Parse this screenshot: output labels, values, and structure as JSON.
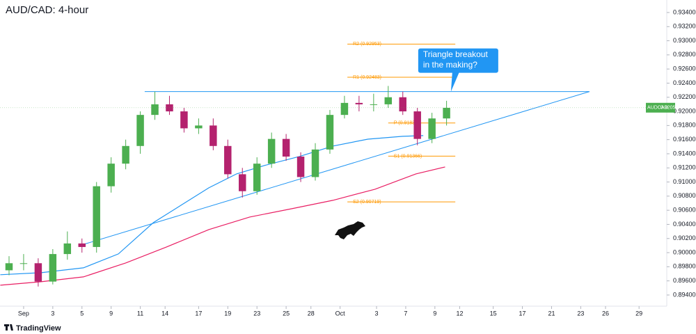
{
  "chart_data": {
    "type": "candlestick",
    "title": "AUD/CAD: 4-hour",
    "x": [
      -1,
      0,
      1,
      2,
      3,
      4,
      5,
      6,
      7,
      8,
      9,
      10,
      11,
      12,
      13,
      14,
      15,
      16,
      17,
      18,
      19,
      20,
      21,
      22,
      23,
      24,
      25,
      26,
      27,
      28,
      29
    ],
    "open": [
      0.8975,
      0.8985,
      0.8985,
      0.8959,
      0.8998,
      0.9013,
      0.9008,
      0.9094,
      0.9126,
      0.9151,
      0.9195,
      0.921,
      0.92,
      0.9176,
      0.918,
      0.9151,
      0.9111,
      0.9087,
      0.9126,
      0.9161,
      0.9136,
      0.9107,
      0.9146,
      0.9195,
      0.9212,
      0.921,
      0.921,
      0.922,
      0.92,
      0.9161,
      0.919
    ],
    "high": [
      0.8995,
      0.8998,
      0.8992,
      0.9005,
      0.903,
      0.902,
      0.91,
      0.9135,
      0.916,
      0.92,
      0.9228,
      0.9222,
      0.9205,
      0.919,
      0.919,
      0.916,
      0.912,
      0.9135,
      0.917,
      0.9168,
      0.9142,
      0.9155,
      0.9202,
      0.9222,
      0.9222,
      0.9225,
      0.9236,
      0.9228,
      0.9205,
      0.9198,
      0.9215
    ],
    "low": [
      0.8968,
      0.8975,
      0.8952,
      0.8955,
      0.899,
      0.9,
      0.9,
      0.9085,
      0.9118,
      0.914,
      0.9188,
      0.9195,
      0.917,
      0.9168,
      0.9145,
      0.9105,
      0.9078,
      0.9082,
      0.912,
      0.913,
      0.91,
      0.9102,
      0.914,
      0.919,
      0.92,
      0.92,
      0.9205,
      0.9195,
      0.9152,
      0.9155,
      0.918
    ],
    "close": [
      0.8985,
      0.8985,
      0.8959,
      0.8998,
      0.9013,
      0.9008,
      0.9094,
      0.9126,
      0.9151,
      0.9195,
      0.921,
      0.92,
      0.9176,
      0.918,
      0.9151,
      0.9111,
      0.9087,
      0.9126,
      0.9161,
      0.9136,
      0.9107,
      0.9146,
      0.9195,
      0.9212,
      0.921,
      0.921,
      0.922,
      0.92,
      0.9161,
      0.919,
      0.9205
    ],
    "up_color": "#4caf50",
    "down_color": "#b4226e",
    "moving_averages": [
      {
        "color": "#2196f3",
        "x": [
          -1.6,
          1.2,
          4.1,
          6.5,
          8.9,
          10.8,
          12.7,
          14.6,
          16.5,
          18.9,
          21.2,
          23.6,
          26.0,
          27.4
        ],
        "values": [
          0.89687,
          0.89716,
          0.89785,
          0.89982,
          0.90425,
          0.90672,
          0.90918,
          0.91115,
          0.91233,
          0.91361,
          0.91509,
          0.91607,
          0.91647,
          0.91657
        ]
      },
      {
        "color": "#e91e63",
        "x": [
          -1.6,
          1.2,
          4.1,
          7.0,
          9.8,
          12.7,
          15.5,
          18.4,
          21.2,
          24.1,
          26.9,
          28.9
        ],
        "values": [
          0.89539,
          0.89588,
          0.89657,
          0.89854,
          0.9008,
          0.90327,
          0.90504,
          0.90622,
          0.90741,
          0.90898,
          0.91115,
          0.91213
        ]
      }
    ],
    "trendlines": [
      {
        "color": "#2196f3",
        "x": [
          8.3,
          38.8
        ],
        "values": [
          0.9228,
          0.9228
        ]
      },
      {
        "color": "#2196f3",
        "x": [
          4.0,
          38.8
        ],
        "values": [
          0.9011,
          0.9228
        ]
      }
    ],
    "pivot_color": "#ff9800",
    "pivots": [
      {
        "label": "R2 (0.92953)",
        "value": 0.92953,
        "x": [
          22.2,
          29.6
        ]
      },
      {
        "label": "R1 (0.92483)",
        "value": 0.92483,
        "x": [
          22.2,
          29.6
        ]
      },
      {
        "label": "P (0.91836)",
        "value": 0.91836,
        "x": [
          25.0,
          29.6
        ]
      },
      {
        "label": "S1 (0.91366)",
        "value": 0.91366,
        "x": [
          25.0,
          29.6
        ]
      },
      {
        "label": "S2 (0.90719)",
        "value": 0.90719,
        "x": [
          22.2,
          29.6
        ]
      }
    ],
    "annotation": {
      "lines": [
        "Triangle breakout",
        "in the making?"
      ],
      "x": 29.3,
      "y": 0.9228,
      "color": "#2196f3"
    },
    "last_price": {
      "label": "AUDCAD",
      "value": 0.92052,
      "color": "#4caf50"
    },
    "branding": "TradingView",
    "xlim": [
      -1.62,
      44.1
    ],
    "ylim": [
      0.89242,
      0.93577
    ],
    "grid": false,
    "xticks": [
      {
        "value": 0,
        "label": "Sep"
      },
      {
        "value": 2,
        "label": "3"
      },
      {
        "value": 4,
        "label": "5"
      },
      {
        "value": 6,
        "label": "9"
      },
      {
        "value": 8,
        "label": "11"
      },
      {
        "value": 9.7,
        "label": "14"
      },
      {
        "value": 12,
        "label": "17"
      },
      {
        "value": 14,
        "label": "19"
      },
      {
        "value": 16,
        "label": "23"
      },
      {
        "value": 18,
        "label": "25"
      },
      {
        "value": 19.7,
        "label": "28"
      },
      {
        "value": 21.7,
        "label": "Oct"
      },
      {
        "value": 24.2,
        "label": "3"
      },
      {
        "value": 26.2,
        "label": "7"
      },
      {
        "value": 28.2,
        "label": "9"
      },
      {
        "value": 29.9,
        "label": "12"
      },
      {
        "value": 32.2,
        "label": "15"
      },
      {
        "value": 34.2,
        "label": "17"
      },
      {
        "value": 36.2,
        "label": "21"
      },
      {
        "value": 38.2,
        "label": "23"
      },
      {
        "value": 39.9,
        "label": "26"
      },
      {
        "value": 42.2,
        "label": "29"
      }
    ],
    "yticks": [
      {
        "value": 0.894,
        "label": "0.89400"
      },
      {
        "value": 0.896,
        "label": "0.89600"
      },
      {
        "value": 0.898,
        "label": "0.89800"
      },
      {
        "value": 0.9,
        "label": "0.90000"
      },
      {
        "value": 0.902,
        "label": "0.90200"
      },
      {
        "value": 0.904,
        "label": "0.90400"
      },
      {
        "value": 0.906,
        "label": "0.90600"
      },
      {
        "value": 0.908,
        "label": "0.90800"
      },
      {
        "value": 0.91,
        "label": "0.91000"
      },
      {
        "value": 0.912,
        "label": "0.91200"
      },
      {
        "value": 0.914,
        "label": "0.91400"
      },
      {
        "value": 0.916,
        "label": "0.91600"
      },
      {
        "value": 0.918,
        "label": "0.91800"
      },
      {
        "value": 0.92,
        "label": "0.92000"
      },
      {
        "value": 0.922,
        "label": "0.92200"
      },
      {
        "value": 0.924,
        "label": "0.92400"
      },
      {
        "value": 0.926,
        "label": "0.92600"
      },
      {
        "value": 0.928,
        "label": "0.92800"
      },
      {
        "value": 0.93,
        "label": "0.93000"
      },
      {
        "value": 0.932,
        "label": "0.93200"
      },
      {
        "value": 0.934,
        "label": "0.93400"
      }
    ]
  }
}
